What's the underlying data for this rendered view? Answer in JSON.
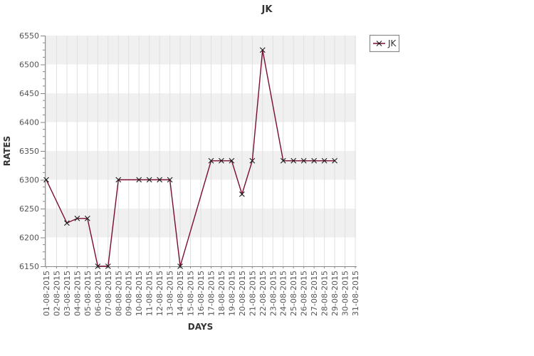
{
  "chart_data": {
    "type": "line",
    "title": "JK",
    "xlabel": "DAYS",
    "ylabel": "RATES",
    "ylim": [
      6150,
      6550
    ],
    "y_ticks": [
      6150,
      6200,
      6250,
      6300,
      6350,
      6400,
      6450,
      6500,
      6550
    ],
    "y_minor_divisions": 4,
    "grid": true,
    "categories": [
      "01-08-2015",
      "02-08-2015",
      "03-08-2015",
      "04-08-2015",
      "05-08-2015",
      "06-08-2015",
      "07-08-2015",
      "08-08-2015",
      "09-08-2015",
      "10-08-2015",
      "11-08-2015",
      "12-08-2015",
      "13-08-2015",
      "14-08-2015",
      "15-08-2015",
      "16-08-2015",
      "17-08-2015",
      "18-08-2015",
      "19-08-2015",
      "20-08-2015",
      "21-08-2015",
      "22-08-2015",
      "23-08-2015",
      "24-08-2015",
      "25-08-2015",
      "26-08-2015",
      "27-08-2015",
      "28-08-2015",
      "29-08-2015",
      "30-08-2015",
      "31-08-2015"
    ],
    "legend": {
      "position": "top-right",
      "entries": [
        {
          "label": "JK",
          "marker": "x-on-line"
        }
      ]
    },
    "series": [
      {
        "name": "JK",
        "line_color": "#7a0c33",
        "marker": "x",
        "marker_color": "#1a1a1a",
        "points": [
          {
            "date": "01-08-2015",
            "value": 6300
          },
          {
            "date": "03-08-2015",
            "value": 6225
          },
          {
            "date": "04-08-2015",
            "value": 6233
          },
          {
            "date": "05-08-2015",
            "value": 6233
          },
          {
            "date": "06-08-2015",
            "value": 6150
          },
          {
            "date": "07-08-2015",
            "value": 6150
          },
          {
            "date": "08-08-2015",
            "value": 6300
          },
          {
            "date": "10-08-2015",
            "value": 6300
          },
          {
            "date": "11-08-2015",
            "value": 6300
          },
          {
            "date": "12-08-2015",
            "value": 6300
          },
          {
            "date": "13-08-2015",
            "value": 6300
          },
          {
            "date": "14-08-2015",
            "value": 6150
          },
          {
            "date": "17-08-2015",
            "value": 6333
          },
          {
            "date": "18-08-2015",
            "value": 6333
          },
          {
            "date": "19-08-2015",
            "value": 6333
          },
          {
            "date": "20-08-2015",
            "value": 6275
          },
          {
            "date": "21-08-2015",
            "value": 6333
          },
          {
            "date": "22-08-2015",
            "value": 6525
          },
          {
            "date": "24-08-2015",
            "value": 6333
          },
          {
            "date": "25-08-2015",
            "value": 6333
          },
          {
            "date": "26-08-2015",
            "value": 6333
          },
          {
            "date": "27-08-2015",
            "value": 6333
          },
          {
            "date": "28-08-2015",
            "value": 6333
          },
          {
            "date": "29-08-2015",
            "value": 6333
          }
        ]
      }
    ],
    "colors": {
      "band_gray": "#f0f0f0",
      "band_white": "#ffffff",
      "gridline": "#e0e0e0",
      "axis": "#878787",
      "tick_label": "#555555",
      "title_color": "#333333",
      "legend_border": "#8a8a8a",
      "legend_bg": "#ffffff"
    }
  }
}
